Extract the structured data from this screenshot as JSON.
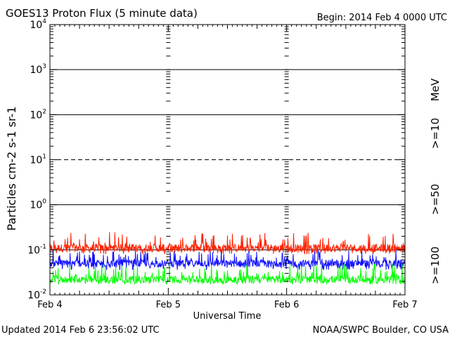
{
  "header": {
    "title": "GOES13 Proton Flux (5 minute data)",
    "begin": "Begin: 2014 Feb 4 0000 UTC"
  },
  "footer": {
    "updated": "Updated 2014 Feb  6 23:56:02 UTC",
    "credit": "NOAA/SWPC Boulder, CO USA"
  },
  "chart_data": {
    "type": "line",
    "title": "GOES13 Proton Flux (5 minute data)",
    "xlabel": "Universal Time",
    "ylabel": "Particles cm-2 s-1 sr-1",
    "yscale": "log",
    "ylim": [
      0.01,
      10000
    ],
    "y_ticks": [
      {
        "value": 0.01,
        "base": "10",
        "exp": "-2"
      },
      {
        "value": 0.1,
        "base": "10",
        "exp": "-1"
      },
      {
        "value": 1,
        "base": "10",
        "exp": "0"
      },
      {
        "value": 10,
        "base": "10",
        "exp": "1"
      },
      {
        "value": 100,
        "base": "10",
        "exp": "2"
      },
      {
        "value": 1000,
        "base": "10",
        "exp": "3"
      },
      {
        "value": 10000,
        "base": "10",
        "exp": "4"
      }
    ],
    "x_ticks": [
      "Feb 4",
      "Feb 5",
      "Feb 6",
      "Feb 7"
    ],
    "xlim_days": [
      0,
      3
    ],
    "unit_label": "MeV",
    "reference_lines": [
      {
        "value": 0.1,
        "style": "solid"
      },
      {
        "value": 1,
        "style": "solid"
      },
      {
        "value": 10,
        "style": "dashed"
      },
      {
        "value": 100,
        "style": "solid"
      },
      {
        "value": 1000,
        "style": "solid"
      }
    ],
    "series": [
      {
        "name": ">=10",
        "color": "#ff2000",
        "typical": 0.11,
        "range": [
          0.08,
          0.25
        ]
      },
      {
        "name": ">=50",
        "color": "#1010ff",
        "typical": 0.05,
        "range": [
          0.035,
          0.1
        ]
      },
      {
        "name": ">=100",
        "color": "#00ff00",
        "typical": 0.022,
        "range": [
          0.017,
          0.05
        ]
      }
    ]
  }
}
